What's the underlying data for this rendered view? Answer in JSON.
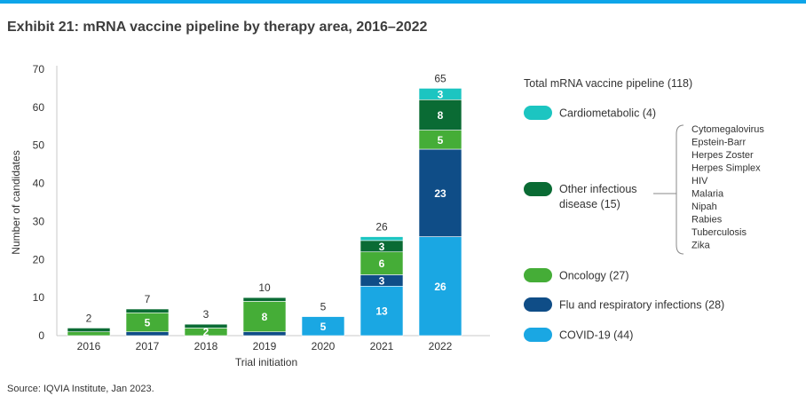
{
  "colors": {
    "accent_bar": "#0ea5e9",
    "cardiometabolic": "#1cc5c1",
    "other_infectious": "#0a6b34",
    "oncology": "#45ad37",
    "flu_respiratory": "#0f4d87",
    "covid": "#1aa7e3"
  },
  "title": "Exhibit 21: mRNA vaccine pipeline by therapy area, 2016–2022",
  "source": "Source: IQVIA Institute, Jan 2023.",
  "chart_data": {
    "type": "bar",
    "stacked": true,
    "categories": [
      "2016",
      "2017",
      "2018",
      "2019",
      "2020",
      "2021",
      "2022"
    ],
    "xlabel": "Trial initiation",
    "ylabel": "Number of candidates",
    "ylim": [
      0,
      70
    ],
    "yticks": [
      0,
      10,
      20,
      30,
      40,
      50,
      60,
      70
    ],
    "totals": [
      2,
      7,
      3,
      10,
      5,
      26,
      65
    ],
    "series": [
      {
        "name": "COVID-19 (44)",
        "key": "covid",
        "values": [
          0,
          0,
          0,
          0,
          5,
          13,
          26
        ]
      },
      {
        "name": "Flu and respiratory infections (28)",
        "key": "flu_respiratory",
        "values": [
          0,
          1,
          0,
          1,
          0,
          3,
          23
        ]
      },
      {
        "name": "Oncology (27)",
        "key": "oncology",
        "values": [
          1,
          5,
          2,
          8,
          0,
          6,
          5
        ]
      },
      {
        "name": "Other infectious disease (15)",
        "key": "other_infectious",
        "values": [
          1,
          1,
          1,
          1,
          0,
          3,
          8
        ]
      },
      {
        "name": "Cardiometabolic (4)",
        "key": "cardiometabolic",
        "values": [
          0,
          0,
          0,
          0,
          0,
          1,
          3
        ]
      }
    ],
    "legend": {
      "title": "Total mRNA vaccine pipeline (118)",
      "placement": "right",
      "order": [
        "cardiometabolic",
        "other_infectious",
        "oncology",
        "flu_respiratory",
        "covid"
      ],
      "other_infectious_list": [
        "Cytomegalovirus",
        "Epstein-Barr",
        "Herpes Zoster",
        "Herpes Simplex",
        "HIV",
        "Malaria",
        "Nipah",
        "Rabies",
        "Tuberculosis",
        "Zika"
      ]
    },
    "grid": false
  }
}
